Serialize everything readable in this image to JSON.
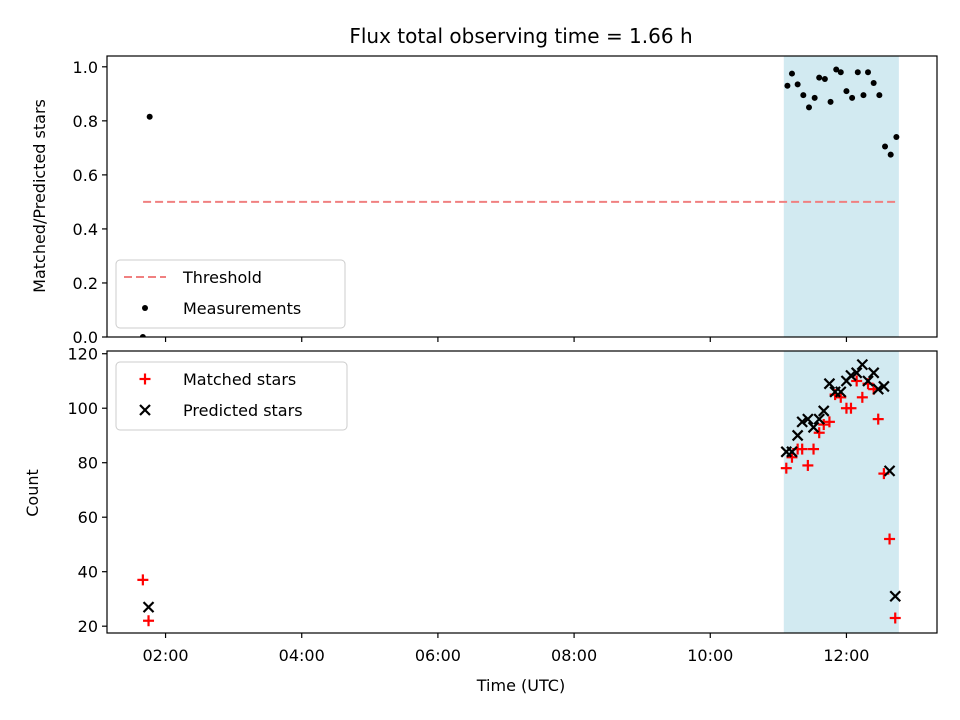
{
  "figure": {
    "title": "Flux total observing time = 1.66 h",
    "xlabel": "Time (UTC)",
    "xticks": [
      {
        "hours": 2,
        "label": "02:00"
      },
      {
        "hours": 4,
        "label": "04:00"
      },
      {
        "hours": 6,
        "label": "06:00"
      },
      {
        "hours": 8,
        "label": "08:00"
      },
      {
        "hours": 10,
        "label": "10:00"
      },
      {
        "hours": 12,
        "label": "12:00"
      }
    ]
  },
  "chart_data": [
    {
      "type": "scatter",
      "ylabel": "Matched/Predicted stars",
      "xlim_hours": [
        1.14,
        13.33
      ],
      "ylim": [
        0,
        1.04
      ],
      "yticks": [
        {
          "v": 0.0,
          "label": "0.0"
        },
        {
          "v": 0.2,
          "label": "0.2"
        },
        {
          "v": 0.4,
          "label": "0.4"
        },
        {
          "v": 0.6,
          "label": "0.6"
        },
        {
          "v": 0.8,
          "label": "0.8"
        },
        {
          "v": 1.0,
          "label": "1.0"
        }
      ],
      "shaded_span_hours": [
        11.08,
        12.77
      ],
      "shade_color": "#add8e6",
      "legend": {
        "placement": "lower-left",
        "entries": [
          "Threshold",
          "Measurements"
        ]
      },
      "threshold": {
        "name": "Threshold",
        "value": 0.5,
        "x_start_hours": 1.67,
        "x_end_hours": 12.77,
        "color": "#f08080",
        "style": "dashed"
      },
      "series": [
        {
          "name": "Measurements",
          "marker": "dot",
          "color": "#000000",
          "points": [
            {
              "x": "01:40",
              "y": 0.0
            },
            {
              "x": "01:46",
              "y": 0.815
            },
            {
              "x": "11:08",
              "y": 0.93
            },
            {
              "x": "11:12",
              "y": 0.975
            },
            {
              "x": "11:17",
              "y": 0.935
            },
            {
              "x": "11:22",
              "y": 0.895
            },
            {
              "x": "11:27",
              "y": 0.85
            },
            {
              "x": "11:32",
              "y": 0.885
            },
            {
              "x": "11:36",
              "y": 0.96
            },
            {
              "x": "11:41",
              "y": 0.955
            },
            {
              "x": "11:46",
              "y": 0.87
            },
            {
              "x": "11:51",
              "y": 0.99
            },
            {
              "x": "11:55",
              "y": 0.98
            },
            {
              "x": "12:00",
              "y": 0.91
            },
            {
              "x": "12:05",
              "y": 0.885
            },
            {
              "x": "12:10",
              "y": 0.98
            },
            {
              "x": "12:15",
              "y": 0.895
            },
            {
              "x": "12:19",
              "y": 0.98
            },
            {
              "x": "12:24",
              "y": 0.94
            },
            {
              "x": "12:29",
              "y": 0.895
            },
            {
              "x": "12:34",
              "y": 0.705
            },
            {
              "x": "12:39",
              "y": 0.675
            },
            {
              "x": "12:44",
              "y": 0.74
            }
          ]
        }
      ]
    },
    {
      "type": "scatter",
      "ylabel": "Count",
      "xlim_hours": [
        1.14,
        13.33
      ],
      "ylim": [
        17.5,
        121
      ],
      "yticks": [
        {
          "v": 20,
          "label": "20"
        },
        {
          "v": 40,
          "label": "40"
        },
        {
          "v": 60,
          "label": "60"
        },
        {
          "v": 80,
          "label": "80"
        },
        {
          "v": 100,
          "label": "100"
        },
        {
          "v": 120,
          "label": "120"
        }
      ],
      "shaded_span_hours": [
        11.08,
        12.77
      ],
      "shade_color": "#add8e6",
      "legend": {
        "placement": "upper-left",
        "entries": [
          "Matched stars",
          "Predicted stars"
        ]
      },
      "series": [
        {
          "name": "Matched stars",
          "marker": "plus",
          "color": "#ff0000",
          "points": [
            {
              "x": "01:40",
              "y": 37
            },
            {
              "x": "01:45",
              "y": 22
            },
            {
              "x": "11:07",
              "y": 78
            },
            {
              "x": "11:12",
              "y": 82
            },
            {
              "x": "11:17",
              "y": 85
            },
            {
              "x": "11:21",
              "y": 85
            },
            {
              "x": "11:26",
              "y": 79
            },
            {
              "x": "11:31",
              "y": 85
            },
            {
              "x": "11:36",
              "y": 91
            },
            {
              "x": "11:40",
              "y": 94
            },
            {
              "x": "11:45",
              "y": 95
            },
            {
              "x": "11:50",
              "y": 105
            },
            {
              "x": "11:55",
              "y": 104
            },
            {
              "x": "12:00",
              "y": 100
            },
            {
              "x": "12:04",
              "y": 100
            },
            {
              "x": "12:09",
              "y": 110
            },
            {
              "x": "12:14",
              "y": 104
            },
            {
              "x": "12:19",
              "y": 109
            },
            {
              "x": "12:24",
              "y": 107
            },
            {
              "x": "12:28",
              "y": 96
            },
            {
              "x": "12:33",
              "y": 76
            },
            {
              "x": "12:38",
              "y": 52
            },
            {
              "x": "12:43",
              "y": 23
            }
          ]
        },
        {
          "name": "Predicted stars",
          "marker": "x",
          "color": "#000000",
          "points": [
            {
              "x": "01:45",
              "y": 27
            },
            {
              "x": "11:07",
              "y": 84
            },
            {
              "x": "11:12",
              "y": 84
            },
            {
              "x": "11:17",
              "y": 90
            },
            {
              "x": "11:21",
              "y": 95
            },
            {
              "x": "11:26",
              "y": 96
            },
            {
              "x": "11:31",
              "y": 93
            },
            {
              "x": "11:36",
              "y": 96
            },
            {
              "x": "11:40",
              "y": 99
            },
            {
              "x": "11:45",
              "y": 109
            },
            {
              "x": "11:50",
              "y": 106
            },
            {
              "x": "11:55",
              "y": 106
            },
            {
              "x": "12:00",
              "y": 110
            },
            {
              "x": "12:04",
              "y": 112
            },
            {
              "x": "12:09",
              "y": 113
            },
            {
              "x": "12:14",
              "y": 116
            },
            {
              "x": "12:19",
              "y": 110
            },
            {
              "x": "12:24",
              "y": 113
            },
            {
              "x": "12:28",
              "y": 107
            },
            {
              "x": "12:33",
              "y": 108
            },
            {
              "x": "12:38",
              "y": 77
            },
            {
              "x": "12:43",
              "y": 31
            }
          ]
        }
      ]
    }
  ]
}
